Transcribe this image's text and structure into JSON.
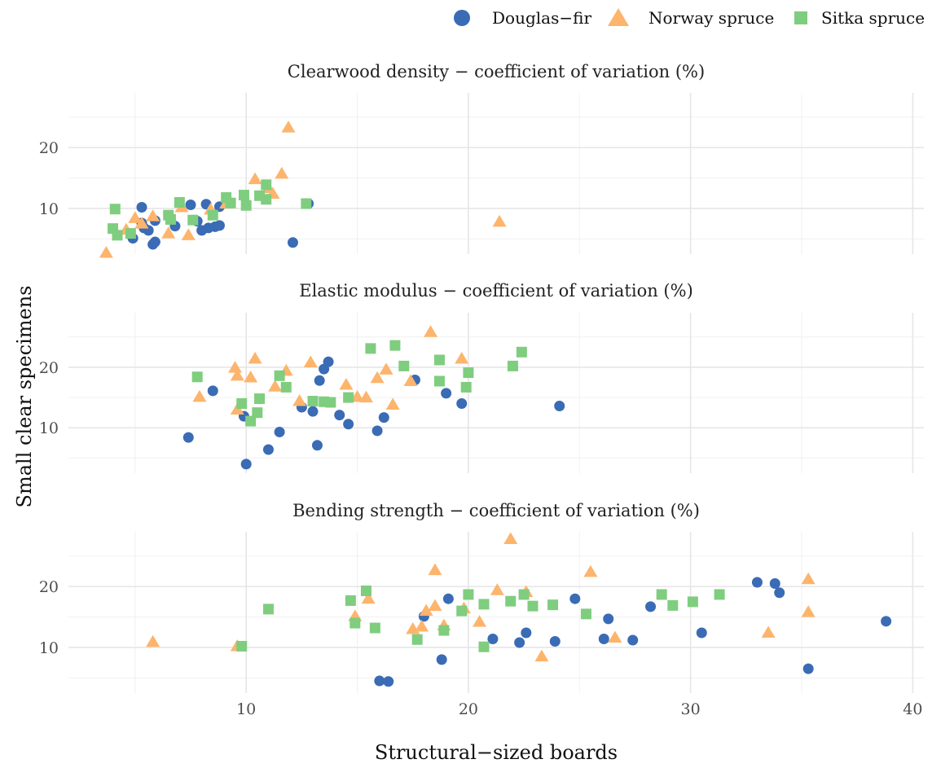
{
  "chart_data": {
    "type": "scatter",
    "xlabel": "Structural−sized boards",
    "ylabel": "Small clear specimens",
    "xlim": [
      2,
      40.5
    ],
    "x_ticks": [
      10,
      20,
      30,
      40
    ],
    "y_ticks": [
      10,
      20
    ],
    "grid": true,
    "legend_position": "top-right",
    "series_styles": [
      {
        "name": "Douglas−fir",
        "shape": "circle",
        "color": "#3a6bb5"
      },
      {
        "name": "Norway spruce",
        "shape": "triangle",
        "color": "#fdb46c"
      },
      {
        "name": "Sitka spruce",
        "shape": "square",
        "color": "#7fcd7f"
      }
    ],
    "panels": [
      {
        "title": "Clearwood density − coefficient of variation (%)",
        "ylim": [
          2.5,
          29
        ],
        "series": [
          {
            "name": "Douglas−fir",
            "points": [
              [
                4.9,
                5.1
              ],
              [
                5.3,
                10.2
              ],
              [
                5.3,
                7.6
              ],
              [
                5.4,
                6.8
              ],
              [
                5.6,
                6.4
              ],
              [
                5.8,
                4.1
              ],
              [
                5.9,
                4.5
              ],
              [
                5.9,
                8.0
              ],
              [
                6.8,
                7.1
              ],
              [
                7.5,
                10.6
              ],
              [
                7.8,
                7.9
              ],
              [
                8.0,
                6.4
              ],
              [
                8.2,
                10.7
              ],
              [
                8.3,
                6.8
              ],
              [
                8.6,
                7.0
              ],
              [
                8.8,
                7.2
              ],
              [
                8.8,
                10.3
              ],
              [
                12.1,
                4.4
              ],
              [
                12.8,
                10.8
              ]
            ]
          },
          {
            "name": "Norway spruce",
            "points": [
              [
                3.7,
                2.7
              ],
              [
                4.6,
                6.5
              ],
              [
                5.0,
                8.4
              ],
              [
                5.3,
                7.5
              ],
              [
                5.8,
                8.7
              ],
              [
                6.5,
                5.9
              ],
              [
                7.1,
                10.2
              ],
              [
                7.4,
                5.6
              ],
              [
                8.4,
                9.8
              ],
              [
                9.1,
                10.8
              ],
              [
                10.4,
                14.8
              ],
              [
                11.0,
                13.3
              ],
              [
                11.2,
                12.4
              ],
              [
                11.6,
                15.7
              ],
              [
                11.9,
                23.3
              ],
              [
                21.4,
                7.8
              ]
            ]
          },
          {
            "name": "Sitka spruce",
            "points": [
              [
                4.0,
                6.7
              ],
              [
                4.1,
                9.9
              ],
              [
                4.2,
                5.6
              ],
              [
                4.8,
                5.9
              ],
              [
                6.5,
                8.9
              ],
              [
                6.6,
                8.2
              ],
              [
                7.0,
                11.0
              ],
              [
                7.6,
                8.1
              ],
              [
                8.5,
                8.9
              ],
              [
                9.1,
                11.8
              ],
              [
                9.3,
                10.9
              ],
              [
                9.9,
                12.2
              ],
              [
                10.0,
                10.5
              ],
              [
                10.6,
                12.1
              ],
              [
                10.9,
                13.9
              ],
              [
                10.9,
                11.5
              ],
              [
                12.7,
                10.8
              ]
            ]
          }
        ]
      },
      {
        "title": "Elastic modulus − coefficient of variation (%)",
        "ylim": [
          2.5,
          29
        ],
        "series": [
          {
            "name": "Douglas−fir",
            "points": [
              [
                7.4,
                8.4
              ],
              [
                8.5,
                16.1
              ],
              [
                9.9,
                11.9
              ],
              [
                10.0,
                4.0
              ],
              [
                11.0,
                6.4
              ],
              [
                11.5,
                9.3
              ],
              [
                12.5,
                13.4
              ],
              [
                13.0,
                12.7
              ],
              [
                13.2,
                7.1
              ],
              [
                13.3,
                17.8
              ],
              [
                13.5,
                19.7
              ],
              [
                13.7,
                20.9
              ],
              [
                14.2,
                12.1
              ],
              [
                14.6,
                10.6
              ],
              [
                15.9,
                9.5
              ],
              [
                16.2,
                11.7
              ],
              [
                17.6,
                17.9
              ],
              [
                19.0,
                15.7
              ],
              [
                19.7,
                14.0
              ],
              [
                24.1,
                13.6
              ]
            ]
          },
          {
            "name": "Norway spruce",
            "points": [
              [
                7.9,
                15.1
              ],
              [
                9.5,
                19.9
              ],
              [
                9.6,
                18.6
              ],
              [
                9.6,
                13.0
              ],
              [
                10.2,
                18.3
              ],
              [
                10.4,
                21.4
              ],
              [
                11.3,
                16.8
              ],
              [
                11.8,
                19.4
              ],
              [
                12.4,
                14.4
              ],
              [
                12.9,
                20.8
              ],
              [
                14.5,
                17.1
              ],
              [
                15.0,
                15.1
              ],
              [
                15.4,
                15.0
              ],
              [
                15.9,
                18.2
              ],
              [
                16.3,
                19.6
              ],
              [
                16.6,
                13.8
              ],
              [
                17.4,
                17.7
              ],
              [
                18.3,
                25.8
              ],
              [
                19.7,
                21.4
              ]
            ]
          },
          {
            "name": "Sitka spruce",
            "points": [
              [
                7.8,
                18.4
              ],
              [
                9.8,
                14.0
              ],
              [
                10.2,
                11.1
              ],
              [
                10.5,
                12.5
              ],
              [
                10.6,
                14.8
              ],
              [
                11.5,
                18.6
              ],
              [
                11.8,
                16.7
              ],
              [
                13.0,
                14.4
              ],
              [
                13.5,
                14.3
              ],
              [
                13.8,
                14.2
              ],
              [
                14.6,
                15.0
              ],
              [
                15.6,
                23.1
              ],
              [
                16.7,
                23.6
              ],
              [
                17.1,
                20.2
              ],
              [
                18.7,
                21.2
              ],
              [
                18.7,
                17.7
              ],
              [
                19.9,
                16.7
              ],
              [
                20.0,
                19.1
              ],
              [
                22.0,
                20.2
              ],
              [
                22.4,
                22.5
              ]
            ]
          }
        ]
      },
      {
        "title": "Bending strength − coefficient of variation (%)",
        "ylim": [
          2.5,
          29
        ],
        "series": [
          {
            "name": "Douglas−fir",
            "points": [
              [
                16.0,
                4.5
              ],
              [
                16.4,
                4.4
              ],
              [
                18.0,
                15.1
              ],
              [
                18.8,
                8.0
              ],
              [
                19.1,
                18.0
              ],
              [
                21.1,
                11.4
              ],
              [
                22.3,
                10.8
              ],
              [
                22.6,
                12.4
              ],
              [
                23.9,
                11.0
              ],
              [
                24.8,
                18.0
              ],
              [
                26.1,
                11.4
              ],
              [
                26.3,
                14.7
              ],
              [
                27.4,
                11.2
              ],
              [
                28.2,
                16.7
              ],
              [
                30.5,
                12.4
              ],
              [
                33.0,
                20.7
              ],
              [
                33.8,
                20.5
              ],
              [
                34.0,
                19.0
              ],
              [
                35.3,
                6.5
              ],
              [
                38.8,
                14.3
              ]
            ]
          },
          {
            "name": "Norway spruce",
            "points": [
              [
                5.8,
                10.9
              ],
              [
                9.6,
                10.2
              ],
              [
                14.9,
                15.1
              ],
              [
                15.5,
                18.0
              ],
              [
                17.5,
                13.0
              ],
              [
                17.9,
                13.4
              ],
              [
                18.1,
                16.0
              ],
              [
                18.5,
                16.8
              ],
              [
                18.5,
                22.7
              ],
              [
                18.9,
                13.6
              ],
              [
                19.8,
                16.4
              ],
              [
                20.5,
                14.2
              ],
              [
                21.3,
                19.4
              ],
              [
                21.9,
                27.8
              ],
              [
                22.6,
                19.1
              ],
              [
                23.3,
                8.5
              ],
              [
                25.5,
                22.4
              ],
              [
                26.6,
                11.6
              ],
              [
                33.5,
                12.4
              ],
              [
                35.3,
                21.2
              ],
              [
                35.3,
                15.8
              ]
            ]
          },
          {
            "name": "Sitka spruce",
            "points": [
              [
                9.8,
                10.2
              ],
              [
                11.0,
                16.3
              ],
              [
                14.7,
                17.7
              ],
              [
                14.9,
                14.0
              ],
              [
                15.4,
                19.3
              ],
              [
                15.8,
                13.2
              ],
              [
                17.7,
                11.3
              ],
              [
                18.9,
                12.8
              ],
              [
                19.7,
                16.0
              ],
              [
                20.0,
                18.7
              ],
              [
                20.7,
                10.1
              ],
              [
                20.7,
                17.1
              ],
              [
                21.9,
                17.6
              ],
              [
                22.5,
                18.7
              ],
              [
                22.9,
                16.8
              ],
              [
                23.8,
                17.0
              ],
              [
                25.3,
                15.5
              ],
              [
                28.7,
                18.7
              ],
              [
                29.2,
                16.9
              ],
              [
                30.1,
                17.5
              ],
              [
                31.3,
                18.7
              ]
            ]
          }
        ]
      }
    ]
  }
}
